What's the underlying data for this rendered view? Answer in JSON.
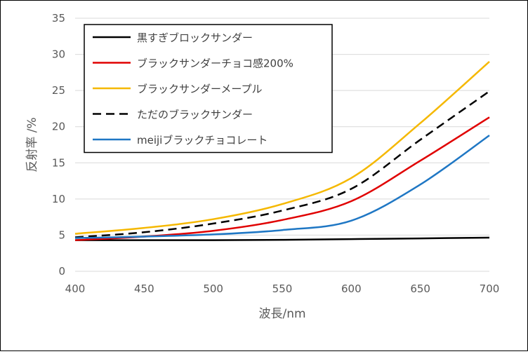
{
  "chart_data": {
    "type": "line",
    "xlabel": "波長/nm",
    "ylabel": "反射率 /%",
    "xlim": [
      400,
      700
    ],
    "ylim": [
      0,
      35
    ],
    "xticks": [
      400,
      450,
      500,
      550,
      600,
      650,
      700
    ],
    "yticks": [
      0,
      5,
      10,
      15,
      20,
      25,
      30,
      35
    ],
    "grid": "horizontal",
    "legend_position": "top-left",
    "series": [
      {
        "name": "黒すぎブロックサンダー",
        "color": "#000000",
        "dash": "solid",
        "x": [
          400,
          450,
          500,
          550,
          600,
          650,
          700
        ],
        "y": [
          4.3,
          4.3,
          4.3,
          4.35,
          4.45,
          4.55,
          4.65
        ]
      },
      {
        "name": "ブラックサンダーチョコ感200%",
        "color": "#e00000",
        "dash": "solid",
        "x": [
          400,
          450,
          500,
          550,
          600,
          650,
          700
        ],
        "y": [
          4.3,
          4.8,
          5.6,
          7.1,
          9.7,
          15.3,
          21.3
        ]
      },
      {
        "name": "ブラックサンダーメープル",
        "color": "#f5b800",
        "dash": "solid",
        "x": [
          400,
          450,
          500,
          550,
          600,
          650,
          700
        ],
        "y": [
          5.2,
          6.0,
          7.2,
          9.3,
          12.9,
          20.5,
          29.0
        ]
      },
      {
        "name": "ただのブラックサンダー",
        "color": "#000000",
        "dash": "dashed",
        "x": [
          400,
          450,
          500,
          550,
          600,
          650,
          700
        ],
        "y": [
          4.7,
          5.4,
          6.6,
          8.4,
          11.4,
          18.2,
          24.9
        ]
      },
      {
        "name": "meijiブラックチョコレート",
        "color": "#1f77c4",
        "dash": "solid",
        "x": [
          400,
          450,
          500,
          550,
          600,
          650,
          700
        ],
        "y": [
          4.6,
          4.8,
          5.1,
          5.7,
          7.0,
          12.0,
          18.8
        ]
      }
    ]
  }
}
